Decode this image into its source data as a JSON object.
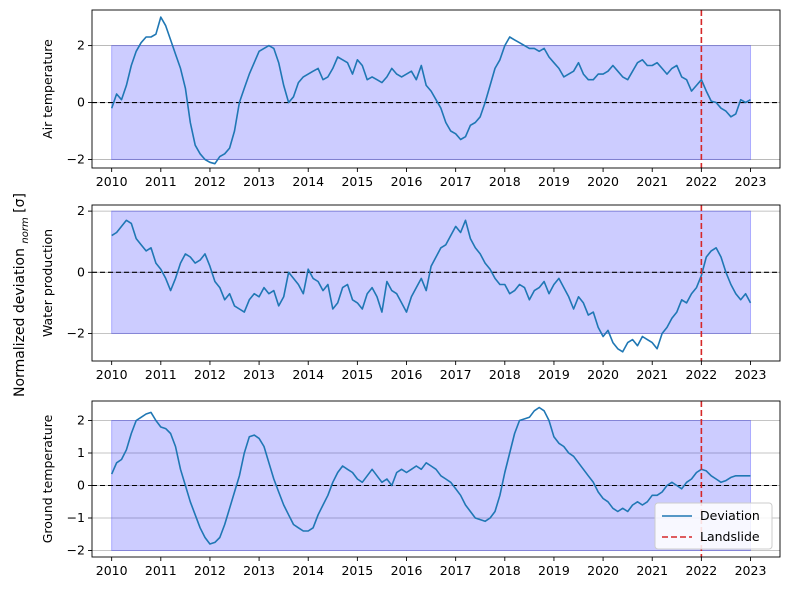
{
  "figure": {
    "shared_ylabel": "Normalized deviation d_norm [σ]",
    "ylabel_main": "Normalized deviation ",
    "ylabel_sub": "norm",
    "ylabel_tail": " [σ]"
  },
  "legend": {
    "deviation_label": "Deviation",
    "landslide_label": "Landslide",
    "placement": "lower-right"
  },
  "colors": {
    "series": "#1f77b4",
    "band": "#0000ff",
    "landslide": "#d62728",
    "zero_line": "#000000",
    "grid": "#b0b0b0"
  },
  "chart_data": [
    {
      "type": "line",
      "ylabel": "Air temperature",
      "xlim": [
        2009.6,
        2023.6
      ],
      "ylim": [
        -2.3,
        3.25
      ],
      "yticks": [
        -2,
        0,
        2
      ],
      "band": {
        "x": [
          2010,
          2023
        ],
        "y": [
          -2,
          2
        ]
      },
      "zero_line": 0,
      "landslide_x": 2022,
      "grid": "horizontal",
      "series": [
        {
          "name": "Deviation",
          "x": [
            2010.0,
            2010.1,
            2010.2,
            2010.3,
            2010.4,
            2010.5,
            2010.6,
            2010.7,
            2010.8,
            2010.9,
            2011.0,
            2011.1,
            2011.2,
            2011.3,
            2011.4,
            2011.5,
            2011.6,
            2011.7,
            2011.8,
            2011.9,
            2012.0,
            2012.1,
            2012.2,
            2012.3,
            2012.4,
            2012.5,
            2012.6,
            2012.7,
            2012.8,
            2012.9,
            2013.0,
            2013.1,
            2013.2,
            2013.3,
            2013.4,
            2013.5,
            2013.6,
            2013.7,
            2013.8,
            2013.9,
            2014.0,
            2014.1,
            2014.2,
            2014.3,
            2014.4,
            2014.5,
            2014.6,
            2014.7,
            2014.8,
            2014.9,
            2015.0,
            2015.1,
            2015.2,
            2015.3,
            2015.4,
            2015.5,
            2015.6,
            2015.7,
            2015.8,
            2015.9,
            2016.0,
            2016.1,
            2016.2,
            2016.3,
            2016.4,
            2016.5,
            2016.6,
            2016.7,
            2016.8,
            2016.9,
            2017.0,
            2017.1,
            2017.2,
            2017.3,
            2017.4,
            2017.5,
            2017.6,
            2017.7,
            2017.8,
            2017.9,
            2018.0,
            2018.1,
            2018.2,
            2018.3,
            2018.4,
            2018.5,
            2018.6,
            2018.7,
            2018.8,
            2018.9,
            2019.0,
            2019.1,
            2019.2,
            2019.3,
            2019.4,
            2019.5,
            2019.6,
            2019.7,
            2019.8,
            2019.9,
            2020.0,
            2020.1,
            2020.2,
            2020.3,
            2020.4,
            2020.5,
            2020.6,
            2020.7,
            2020.8,
            2020.9,
            2021.0,
            2021.1,
            2021.2,
            2021.3,
            2021.4,
            2021.5,
            2021.6,
            2021.7,
            2021.8,
            2021.9,
            2022.0,
            2022.1,
            2022.2,
            2022.3,
            2022.4,
            2022.5,
            2022.6,
            2022.7,
            2022.8,
            2022.9,
            2023.0
          ],
          "values": [
            -0.2,
            0.3,
            0.1,
            0.6,
            1.3,
            1.8,
            2.1,
            2.3,
            2.3,
            2.4,
            3.0,
            2.7,
            2.2,
            1.7,
            1.2,
            0.5,
            -0.7,
            -1.5,
            -1.8,
            -2.0,
            -2.1,
            -2.15,
            -1.9,
            -1.8,
            -1.6,
            -1.0,
            0.0,
            0.5,
            1.0,
            1.4,
            1.8,
            1.9,
            2.0,
            1.9,
            1.4,
            0.6,
            0.0,
            0.2,
            0.7,
            0.9,
            1.0,
            1.1,
            1.2,
            0.8,
            0.9,
            1.2,
            1.6,
            1.5,
            1.4,
            1.0,
            1.5,
            1.3,
            0.8,
            0.9,
            0.8,
            0.7,
            0.9,
            1.2,
            1.0,
            0.9,
            1.0,
            1.1,
            0.8,
            1.3,
            0.6,
            0.4,
            0.1,
            -0.2,
            -0.7,
            -1.0,
            -1.1,
            -1.3,
            -1.2,
            -0.8,
            -0.7,
            -0.5,
            0.0,
            0.6,
            1.2,
            1.5,
            2.0,
            2.3,
            2.2,
            2.1,
            2.0,
            1.9,
            1.9,
            1.8,
            1.9,
            1.6,
            1.4,
            1.2,
            0.9,
            1.0,
            1.1,
            1.4,
            1.0,
            0.8,
            0.8,
            1.0,
            1.0,
            1.1,
            1.3,
            1.1,
            0.9,
            0.8,
            1.1,
            1.4,
            1.5,
            1.3,
            1.3,
            1.4,
            1.2,
            1.0,
            1.2,
            1.3,
            0.9,
            0.8,
            0.4,
            0.6,
            0.8,
            0.4,
            0.05,
            0.0,
            -0.2,
            -0.3,
            -0.5,
            -0.4,
            0.1,
            0.0,
            0.1
          ]
        }
      ]
    },
    {
      "type": "line",
      "ylabel": "Water production",
      "xlim": [
        2009.6,
        2023.6
      ],
      "ylim": [
        -2.9,
        2.2
      ],
      "yticks": [
        -2,
        0,
        2
      ],
      "band": {
        "x": [
          2010,
          2023
        ],
        "y": [
          -2,
          2
        ]
      },
      "zero_line": 0,
      "landslide_x": 2022,
      "grid": "horizontal",
      "series": [
        {
          "name": "Deviation",
          "x": [
            2010.0,
            2010.1,
            2010.2,
            2010.3,
            2010.4,
            2010.5,
            2010.6,
            2010.7,
            2010.8,
            2010.9,
            2011.0,
            2011.1,
            2011.2,
            2011.3,
            2011.4,
            2011.5,
            2011.6,
            2011.7,
            2011.8,
            2011.9,
            2012.0,
            2012.1,
            2012.2,
            2012.3,
            2012.4,
            2012.5,
            2012.6,
            2012.7,
            2012.8,
            2012.9,
            2013.0,
            2013.1,
            2013.2,
            2013.3,
            2013.4,
            2013.5,
            2013.6,
            2013.7,
            2013.8,
            2013.9,
            2014.0,
            2014.1,
            2014.2,
            2014.3,
            2014.4,
            2014.5,
            2014.6,
            2014.7,
            2014.8,
            2014.9,
            2015.0,
            2015.1,
            2015.2,
            2015.3,
            2015.4,
            2015.5,
            2015.6,
            2015.7,
            2015.8,
            2015.9,
            2016.0,
            2016.1,
            2016.2,
            2016.3,
            2016.4,
            2016.5,
            2016.6,
            2016.7,
            2016.8,
            2016.9,
            2017.0,
            2017.1,
            2017.2,
            2017.3,
            2017.4,
            2017.5,
            2017.6,
            2017.7,
            2017.8,
            2017.9,
            2018.0,
            2018.1,
            2018.2,
            2018.3,
            2018.4,
            2018.5,
            2018.6,
            2018.7,
            2018.8,
            2018.9,
            2019.0,
            2019.1,
            2019.2,
            2019.3,
            2019.4,
            2019.5,
            2019.6,
            2019.7,
            2019.8,
            2019.9,
            2020.0,
            2020.1,
            2020.2,
            2020.3,
            2020.4,
            2020.5,
            2020.6,
            2020.7,
            2020.8,
            2020.9,
            2021.0,
            2021.1,
            2021.2,
            2021.3,
            2021.4,
            2021.5,
            2021.6,
            2021.7,
            2021.8,
            2021.9,
            2022.0,
            2022.1,
            2022.2,
            2022.3,
            2022.4,
            2022.5,
            2022.6,
            2022.7,
            2022.8,
            2022.9,
            2023.0
          ],
          "values": [
            1.2,
            1.3,
            1.5,
            1.7,
            1.6,
            1.1,
            0.9,
            0.7,
            0.8,
            0.3,
            0.1,
            -0.2,
            -0.6,
            -0.2,
            0.3,
            0.6,
            0.5,
            0.3,
            0.4,
            0.6,
            0.2,
            -0.3,
            -0.5,
            -0.9,
            -0.7,
            -1.1,
            -1.2,
            -1.3,
            -0.9,
            -0.7,
            -0.8,
            -0.5,
            -0.7,
            -0.6,
            -1.1,
            -0.8,
            0.0,
            -0.2,
            -0.4,
            -0.7,
            0.1,
            -0.2,
            -0.3,
            -0.6,
            -0.4,
            -1.2,
            -1.0,
            -0.5,
            -0.4,
            -0.9,
            -1.0,
            -1.2,
            -0.7,
            -0.5,
            -0.8,
            -1.3,
            -0.3,
            -0.6,
            -0.7,
            -1.0,
            -1.3,
            -0.8,
            -0.5,
            -0.2,
            -0.6,
            0.2,
            0.5,
            0.8,
            0.9,
            1.2,
            1.5,
            1.3,
            1.7,
            1.1,
            0.8,
            0.6,
            0.3,
            0.1,
            -0.2,
            -0.4,
            -0.4,
            -0.7,
            -0.6,
            -0.4,
            -0.5,
            -0.9,
            -0.6,
            -0.5,
            -0.3,
            -0.7,
            -0.4,
            -0.2,
            -0.5,
            -0.8,
            -1.2,
            -0.8,
            -1.0,
            -1.4,
            -1.3,
            -1.8,
            -2.1,
            -1.9,
            -2.3,
            -2.5,
            -2.6,
            -2.3,
            -2.2,
            -2.4,
            -2.1,
            -2.2,
            -2.3,
            -2.5,
            -2.0,
            -1.8,
            -1.5,
            -1.3,
            -0.9,
            -1.0,
            -0.7,
            -0.5,
            -0.1,
            0.5,
            0.7,
            0.8,
            0.5,
            0.0,
            -0.4,
            -0.7,
            -0.9,
            -0.7,
            -1.0
          ]
        }
      ]
    },
    {
      "type": "line",
      "ylabel": "Ground temperature",
      "xlim": [
        2009.6,
        2023.6
      ],
      "ylim": [
        -2.2,
        2.6
      ],
      "yticks": [
        -2,
        -1,
        0,
        1,
        2
      ],
      "band": {
        "x": [
          2010,
          2023
        ],
        "y": [
          -2,
          2
        ]
      },
      "zero_line": 0,
      "landslide_x": 2022,
      "grid": "horizontal",
      "series": [
        {
          "name": "Deviation",
          "x": [
            2010.0,
            2010.1,
            2010.2,
            2010.3,
            2010.4,
            2010.5,
            2010.6,
            2010.7,
            2010.8,
            2010.9,
            2011.0,
            2011.1,
            2011.2,
            2011.3,
            2011.4,
            2011.5,
            2011.6,
            2011.7,
            2011.8,
            2011.9,
            2012.0,
            2012.1,
            2012.2,
            2012.3,
            2012.4,
            2012.5,
            2012.6,
            2012.7,
            2012.8,
            2012.9,
            2013.0,
            2013.1,
            2013.2,
            2013.3,
            2013.4,
            2013.5,
            2013.6,
            2013.7,
            2013.8,
            2013.9,
            2014.0,
            2014.1,
            2014.2,
            2014.3,
            2014.4,
            2014.5,
            2014.6,
            2014.7,
            2014.8,
            2014.9,
            2015.0,
            2015.1,
            2015.2,
            2015.3,
            2015.4,
            2015.5,
            2015.6,
            2015.7,
            2015.8,
            2015.9,
            2016.0,
            2016.1,
            2016.2,
            2016.3,
            2016.4,
            2016.5,
            2016.6,
            2016.7,
            2016.8,
            2016.9,
            2017.0,
            2017.1,
            2017.2,
            2017.3,
            2017.4,
            2017.5,
            2017.6,
            2017.7,
            2017.8,
            2017.9,
            2018.0,
            2018.1,
            2018.2,
            2018.3,
            2018.4,
            2018.5,
            2018.6,
            2018.7,
            2018.8,
            2018.9,
            2019.0,
            2019.1,
            2019.2,
            2019.3,
            2019.4,
            2019.5,
            2019.6,
            2019.7,
            2019.8,
            2019.9,
            2020.0,
            2020.1,
            2020.2,
            2020.3,
            2020.4,
            2020.5,
            2020.6,
            2020.7,
            2020.8,
            2020.9,
            2021.0,
            2021.1,
            2021.2,
            2021.3,
            2021.4,
            2021.5,
            2021.6,
            2021.7,
            2021.8,
            2021.9,
            2022.0,
            2022.1,
            2022.2,
            2022.3,
            2022.4,
            2022.5,
            2022.6,
            2022.7,
            2022.8,
            2022.9,
            2023.0
          ],
          "values": [
            0.35,
            0.7,
            0.8,
            1.1,
            1.6,
            2.0,
            2.1,
            2.2,
            2.25,
            2.0,
            1.8,
            1.75,
            1.6,
            1.2,
            0.5,
            0.0,
            -0.5,
            -0.9,
            -1.3,
            -1.6,
            -1.8,
            -1.75,
            -1.6,
            -1.2,
            -0.7,
            -0.2,
            0.3,
            1.0,
            1.5,
            1.55,
            1.45,
            1.2,
            0.7,
            0.2,
            -0.2,
            -0.6,
            -0.9,
            -1.2,
            -1.3,
            -1.4,
            -1.4,
            -1.3,
            -0.9,
            -0.6,
            -0.3,
            0.1,
            0.4,
            0.6,
            0.5,
            0.4,
            0.2,
            0.1,
            0.3,
            0.5,
            0.3,
            0.1,
            0.2,
            0.0,
            0.4,
            0.5,
            0.4,
            0.5,
            0.6,
            0.5,
            0.7,
            0.6,
            0.5,
            0.3,
            0.2,
            0.1,
            -0.1,
            -0.3,
            -0.6,
            -0.8,
            -1.0,
            -1.05,
            -1.1,
            -1.0,
            -0.8,
            -0.3,
            0.4,
            1.0,
            1.6,
            2.0,
            2.05,
            2.1,
            2.3,
            2.4,
            2.3,
            2.0,
            1.5,
            1.3,
            1.2,
            1.0,
            0.9,
            0.7,
            0.5,
            0.3,
            0.1,
            -0.2,
            -0.4,
            -0.5,
            -0.7,
            -0.8,
            -0.7,
            -0.8,
            -0.6,
            -0.5,
            -0.6,
            -0.5,
            -0.3,
            -0.3,
            -0.2,
            0.0,
            0.1,
            0.0,
            -0.1,
            0.1,
            0.2,
            0.4,
            0.5,
            0.45,
            0.3,
            0.2,
            0.1,
            0.15,
            0.25,
            0.3,
            0.3,
            0.3,
            0.3
          ]
        }
      ]
    }
  ]
}
